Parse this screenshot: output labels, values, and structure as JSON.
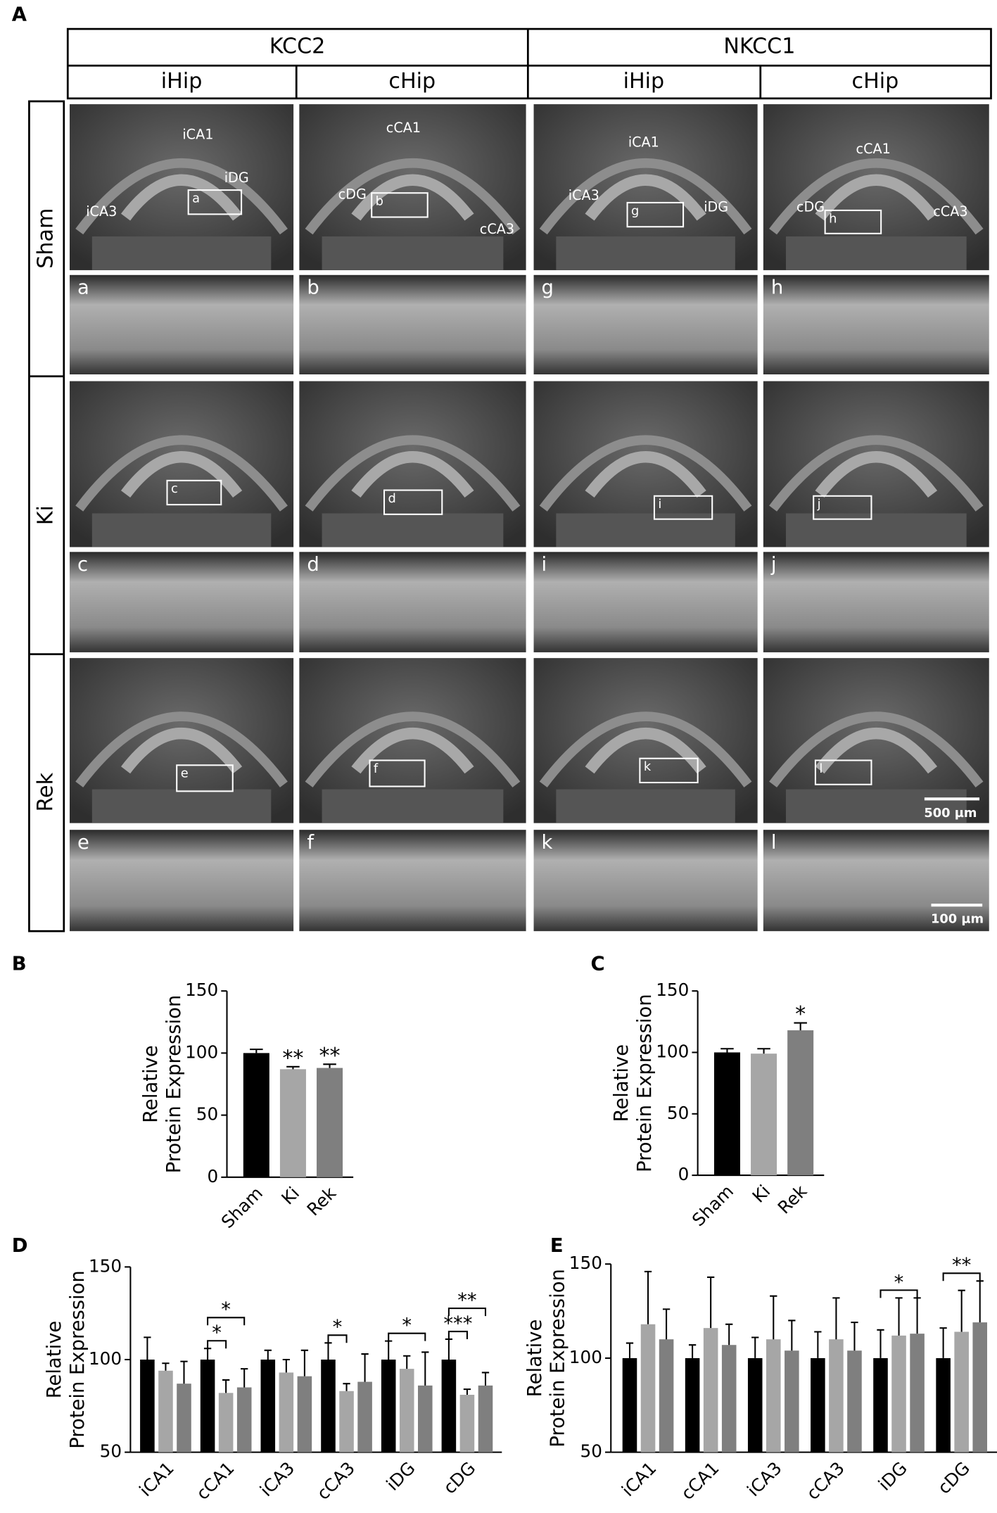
{
  "panel_a": {
    "label": "A",
    "columns": [
      "KCC2",
      "NKCC1"
    ],
    "subcolumns": [
      "iHip",
      "cHip",
      "iHip",
      "cHip"
    ],
    "rows": [
      "Sham",
      "Ki",
      "Rek"
    ],
    "region_labels": [
      [
        "iCA1",
        "iDG",
        "iCA3"
      ],
      [
        "cCA1",
        "cDG",
        "cCA3"
      ],
      [
        "iCA1",
        "iCA3",
        "iDG"
      ],
      [
        "cCA1",
        "cDG",
        "cCA3"
      ]
    ],
    "insets": [
      "a",
      "b",
      "g",
      "h",
      "c",
      "d",
      "i",
      "j",
      "e",
      "f",
      "k",
      "l"
    ],
    "scale_bars": [
      "500 µm",
      "100 µm"
    ]
  },
  "chart_data": [
    {
      "type": "bar",
      "panel_label": "B",
      "y_label": [
        "Relative",
        "Protein Expression"
      ],
      "categories": [
        "Sham",
        "Ki",
        "Rek"
      ],
      "values": [
        100,
        87,
        88
      ],
      "errors": [
        3,
        2,
        3
      ],
      "colors": [
        "#000000",
        "#a6a6a6",
        "#7f7f7f"
      ],
      "ylim": [
        0,
        150
      ],
      "yticks": [
        0,
        50,
        100,
        150
      ],
      "annotations": [
        {
          "text": "**",
          "category": 1
        },
        {
          "text": "**",
          "category": 2
        }
      ]
    },
    {
      "type": "bar",
      "panel_label": "C",
      "y_label": [
        "Relative",
        "Protein Expression"
      ],
      "categories": [
        "Sham",
        "Ki",
        "Rek"
      ],
      "values": [
        100,
        99,
        118
      ],
      "errors": [
        3,
        4,
        6
      ],
      "colors": [
        "#000000",
        "#a6a6a6",
        "#7f7f7f"
      ],
      "ylim": [
        0,
        150
      ],
      "yticks": [
        0,
        50,
        100,
        150
      ],
      "annotations": [
        {
          "text": "*",
          "category": 2
        }
      ]
    },
    {
      "type": "grouped_bar",
      "panel_label": "D",
      "y_label": [
        "Relative",
        "Protein Expression"
      ],
      "categories": [
        "iCA1",
        "cCA1",
        "iCA3",
        "cCA3",
        "iDG",
        "cDG"
      ],
      "series": [
        {
          "color": "#000000",
          "values": [
            100,
            100,
            100,
            100,
            100,
            100
          ],
          "errors": [
            12,
            6,
            5,
            9,
            10,
            11
          ]
        },
        {
          "color": "#a6a6a6",
          "values": [
            94,
            82,
            93,
            83,
            95,
            81
          ],
          "errors": [
            4,
            7,
            7,
            4,
            7,
            3
          ]
        },
        {
          "color": "#7f7f7f",
          "values": [
            87,
            85,
            91,
            88,
            86,
            86
          ],
          "errors": [
            12,
            10,
            14,
            15,
            18,
            7
          ]
        }
      ],
      "ylim": [
        50,
        150
      ],
      "yticks": [
        50,
        100,
        150
      ],
      "annotations": [
        {
          "text": "*",
          "category": 1,
          "between": [
            0,
            1
          ]
        },
        {
          "text": "*",
          "category": 1,
          "between": [
            0,
            2
          ]
        },
        {
          "text": "*",
          "category": 3,
          "between": [
            0,
            1
          ]
        },
        {
          "text": "*",
          "category": 4,
          "between": [
            0,
            2
          ]
        },
        {
          "text": "***",
          "category": 5,
          "between": [
            0,
            1
          ]
        },
        {
          "text": "**",
          "category": 5,
          "between": [
            0,
            2
          ]
        }
      ]
    },
    {
      "type": "grouped_bar",
      "panel_label": "E",
      "y_label": [
        "Relative",
        "Protein Expression"
      ],
      "categories": [
        "iCA1",
        "cCA1",
        "iCA3",
        "cCA3",
        "iDG",
        "cDG"
      ],
      "series": [
        {
          "color": "#000000",
          "values": [
            100,
            100,
            100,
            100,
            100,
            100
          ],
          "errors": [
            8,
            7,
            11,
            14,
            15,
            16
          ]
        },
        {
          "color": "#a6a6a6",
          "values": [
            118,
            116,
            110,
            110,
            112,
            114
          ],
          "errors": [
            28,
            27,
            23,
            22,
            20,
            22
          ]
        },
        {
          "color": "#7f7f7f",
          "values": [
            110,
            107,
            104,
            104,
            113,
            119
          ],
          "errors": [
            16,
            11,
            16,
            15,
            19,
            22
          ]
        }
      ],
      "ylim": [
        50,
        150
      ],
      "yticks": [
        50,
        100,
        150
      ],
      "annotations": [
        {
          "text": "*",
          "category": 4,
          "between": [
            0,
            2
          ]
        },
        {
          "text": "**",
          "category": 5,
          "between": [
            0,
            2
          ]
        }
      ]
    }
  ]
}
